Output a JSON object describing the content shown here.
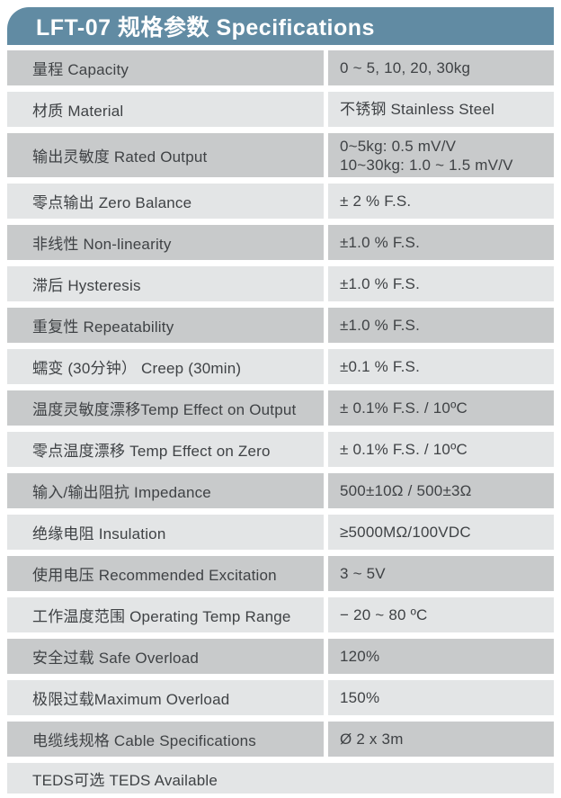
{
  "header": {
    "title": "LFT-07 规格参数 Specifications"
  },
  "colors": {
    "page_bg": "#ffffff",
    "header_bg": "#618ba3",
    "header_text": "#ffffff",
    "row_dark": "#c8cacb",
    "row_light": "#e3e5e6",
    "text": "#3f4245"
  },
  "table": {
    "columns": [
      "parameter",
      "value"
    ],
    "rows": [
      {
        "label": "量程 Capacity",
        "value": "0 ~ 5, 10, 20, 30kg"
      },
      {
        "label": "材质 Material",
        "value": "不锈钢 Stainless Steel"
      },
      {
        "label": "输出灵敏度 Rated Output",
        "value": "0~5kg: 0.5 mV/V\n10~30kg: 1.0 ~ 1.5 mV/V"
      },
      {
        "label": "零点输出  Zero Balance",
        "value": "± 2 % F.S."
      },
      {
        "label": "非线性 Non-linearity",
        "value": "±1.0 % F.S."
      },
      {
        "label": "滞后 Hysteresis",
        "value": "±1.0 % F.S."
      },
      {
        "label": "重复性 Repeatability",
        "value": "±1.0 % F.S."
      },
      {
        "label": "蠕变 (30分钟） Creep (30min)",
        "value": "±0.1 % F.S."
      },
      {
        "label": "温度灵敏度漂移Temp Effect on Output",
        "value": "± 0.1% F.S. / 10ºC"
      },
      {
        "label": "零点温度漂移 Temp Effect on Zero",
        "value": "± 0.1% F.S. / 10ºC"
      },
      {
        "label": "输入/输出阻抗 Impedance",
        "value": "500±10Ω / 500±3Ω"
      },
      {
        "label": "绝缘电阻  Insulation",
        "value": "≥5000MΩ/100VDC"
      },
      {
        "label": "使用电压 Recommended Excitation",
        "value": "3 ~ 5V"
      },
      {
        "label": "工作温度范围 Operating Temp  Range",
        "value": "− 20 ~ 80 ºC"
      },
      {
        "label": "安全过载 Safe Overload",
        "value": "120%"
      },
      {
        "label": "极限过载Maximum Overload",
        "value": "150%"
      },
      {
        "label": "电缆线规格 Cable Specifications",
        "value": "Ø 2 x 3m"
      },
      {
        "label": "TEDS可选 TEDS Available",
        "value": null
      }
    ]
  }
}
